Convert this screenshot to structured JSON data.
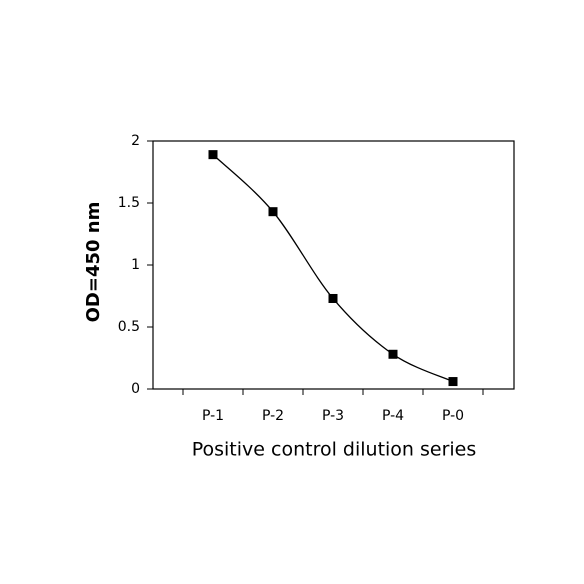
{
  "chart_data": {
    "type": "line",
    "x_label": "Positive control dilution series",
    "y_label": "OD=450 nm",
    "categories": [
      "P-1",
      "P-2",
      "P-3",
      "P-4",
      "P-0"
    ],
    "values": [
      1.89,
      1.43,
      0.73,
      0.28,
      0.06
    ],
    "color": "#000000",
    "smooth": true,
    "marker": "square",
    "ylim": [
      0,
      2
    ],
    "yticks": [
      0,
      0.5,
      1,
      1.5,
      2
    ],
    "grid": false
  }
}
